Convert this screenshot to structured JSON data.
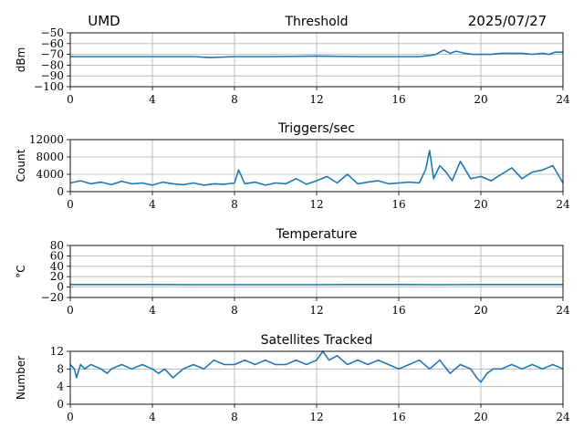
{
  "header": {
    "site": "UMD",
    "date": "2025/07/27"
  },
  "chart_data": [
    {
      "type": "line",
      "title": "Threshold",
      "xlabel": "",
      "ylabel": "dBm",
      "xlim": [
        0,
        24
      ],
      "ylim": [
        -100,
        -50
      ],
      "grid": true,
      "color": "#1f77b4",
      "xticks": [
        "0",
        "4",
        "8",
        "12",
        "16",
        "20",
        "24"
      ],
      "yticks": [
        "−50",
        "−60",
        "−70",
        "−80",
        "−90",
        "−100"
      ],
      "series": [
        {
          "x": [
            0,
            2,
            4,
            6,
            6.8,
            7.5,
            8,
            10,
            12,
            14,
            16,
            17,
            17.5,
            17.8,
            18,
            18.2,
            18.5,
            18.8,
            19.2,
            19.6,
            20,
            20.5,
            21,
            21.5,
            22,
            22.5,
            23,
            23.3,
            23.6,
            24
          ],
          "y": [
            -72,
            -72,
            -72,
            -72,
            -73,
            -72.5,
            -72,
            -72,
            -71.5,
            -72,
            -72,
            -72,
            -71,
            -70,
            -68,
            -66,
            -69,
            -67,
            -69,
            -70,
            -70,
            -70,
            -69,
            -69,
            -69,
            -70,
            -69,
            -70,
            -68,
            -68
          ]
        }
      ]
    },
    {
      "type": "line",
      "title": "Triggers/sec",
      "xlabel": "",
      "ylabel": "Count",
      "xlim": [
        0,
        24
      ],
      "ylim": [
        0,
        12000
      ],
      "grid": true,
      "color": "#1f77b4",
      "xticks": [
        "0",
        "4",
        "8",
        "12",
        "16",
        "20",
        "24"
      ],
      "yticks": [
        "12000",
        "8000",
        "4000",
        "0"
      ],
      "series": [
        {
          "x": [
            0,
            0.5,
            1,
            1.5,
            2,
            2.5,
            3,
            3.5,
            4,
            4.5,
            5,
            5.5,
            6,
            6.5,
            7,
            7.5,
            8,
            8.2,
            8.5,
            9,
            9.5,
            10,
            10.5,
            11,
            11.5,
            12,
            12.5,
            13,
            13.5,
            14,
            14.5,
            15,
            15.5,
            16,
            16.5,
            17,
            17.3,
            17.5,
            17.7,
            18,
            18.3,
            18.6,
            19,
            19.5,
            20,
            20.5,
            21,
            21.5,
            22,
            22.5,
            23,
            23.5,
            24
          ],
          "y": [
            2000,
            2500,
            1800,
            2200,
            1600,
            2400,
            1800,
            2000,
            1500,
            2200,
            1800,
            1600,
            2000,
            1500,
            1800,
            1700,
            2000,
            5000,
            1800,
            2200,
            1500,
            2000,
            1800,
            3000,
            1700,
            2500,
            3500,
            2000,
            4000,
            1800,
            2200,
            2500,
            1800,
            2000,
            2200,
            2000,
            5000,
            9500,
            3000,
            6000,
            4500,
            2500,
            7000,
            3000,
            3500,
            2500,
            4000,
            5500,
            3000,
            4500,
            5000,
            6000,
            2000
          ]
        }
      ]
    },
    {
      "type": "line",
      "title": "Temperature",
      "xlabel": "",
      "ylabel": "°C",
      "xlim": [
        0,
        24
      ],
      "ylim": [
        -20,
        80
      ],
      "grid": true,
      "color": "#1f77b4",
      "xticks": [
        "0",
        "4",
        "8",
        "12",
        "16",
        "20",
        "24"
      ],
      "yticks": [
        "80",
        "60",
        "40",
        "20",
        "0",
        "−20"
      ],
      "series": [
        {
          "x": [
            0,
            2,
            4,
            6,
            8,
            10,
            12,
            14,
            16,
            18,
            20,
            22,
            24
          ],
          "y": [
            5,
            5,
            5,
            4.5,
            4.5,
            4.5,
            4.5,
            5,
            5,
            4.5,
            5,
            5,
            5
          ]
        }
      ]
    },
    {
      "type": "line",
      "title": "Satellites Tracked",
      "xlabel": "",
      "ylabel": "Number",
      "xlim": [
        0,
        24
      ],
      "ylim": [
        0,
        12
      ],
      "grid": true,
      "color": "#1f77b4",
      "xticks": [
        "0",
        "4",
        "8",
        "12",
        "16",
        "20",
        "24"
      ],
      "yticks": [
        "12",
        "8",
        "4",
        "0"
      ],
      "series": [
        {
          "x": [
            0,
            0.2,
            0.3,
            0.5,
            0.7,
            1,
            1.5,
            1.8,
            2,
            2.5,
            3,
            3.5,
            4,
            4.3,
            4.6,
            5,
            5.5,
            6,
            6.5,
            7,
            7.5,
            8,
            8.5,
            9,
            9.5,
            10,
            10.5,
            11,
            11.5,
            12,
            12.3,
            12.6,
            13,
            13.5,
            14,
            14.5,
            15,
            15.5,
            16,
            16.5,
            17,
            17.5,
            18,
            18.5,
            19,
            19.5,
            19.8,
            20,
            20.3,
            20.6,
            21,
            21.5,
            22,
            22.5,
            23,
            23.5,
            24
          ],
          "y": [
            9,
            8,
            6,
            9,
            8,
            9,
            8,
            7,
            8,
            9,
            8,
            9,
            8,
            7,
            8,
            6,
            8,
            9,
            8,
            10,
            9,
            9,
            10,
            9,
            10,
            9,
            9,
            10,
            9,
            10,
            12,
            10,
            11,
            9,
            10,
            9,
            10,
            9,
            8,
            9,
            10,
            8,
            10,
            7,
            9,
            8,
            6,
            5,
            7,
            8,
            8,
            9,
            8,
            9,
            8,
            9,
            8
          ]
        }
      ]
    }
  ]
}
